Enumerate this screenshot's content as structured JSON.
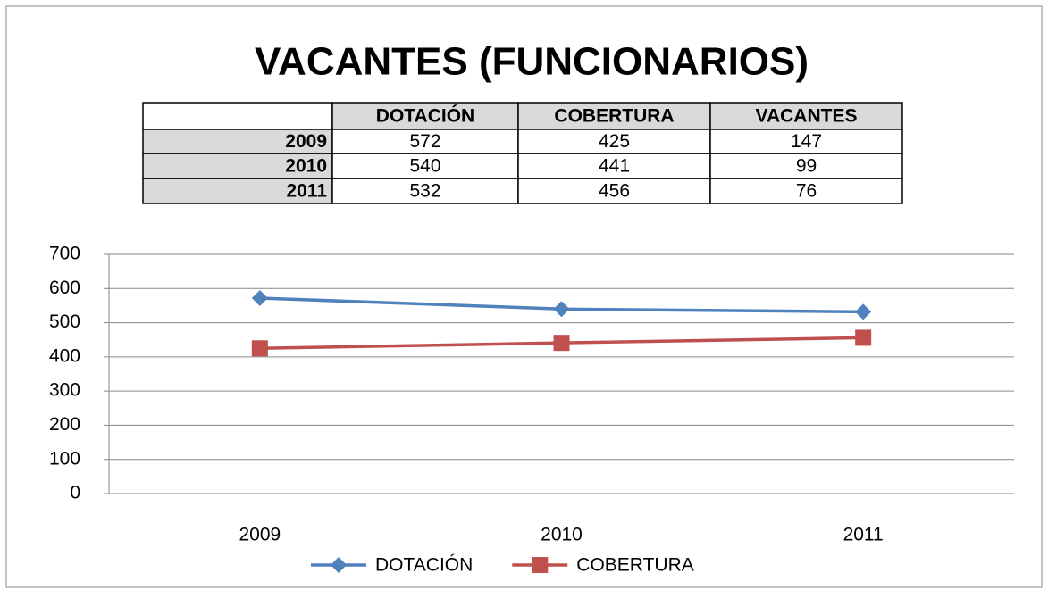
{
  "chart_data": {
    "type": "line",
    "title": "VACANTES (FUNCIONARIOS)",
    "table": {
      "columns": [
        "DOTACIÓN",
        "COBERTURA",
        "VACANTES"
      ],
      "rows": [
        [
          "2009",
          572,
          425,
          147
        ],
        [
          "2010",
          540,
          441,
          99
        ],
        [
          "2011",
          532,
          456,
          76
        ]
      ]
    },
    "categories": [
      "2009",
      "2010",
      "2011"
    ],
    "series": [
      {
        "name": "DOTACIÓN",
        "color": "#4f81bd",
        "marker": "diamond",
        "values": [
          572,
          540,
          532
        ]
      },
      {
        "name": "COBERTURA",
        "color": "#c0504d",
        "marker": "square",
        "values": [
          425,
          441,
          456
        ]
      }
    ],
    "ylim": [
      0,
      700
    ],
    "yticks": [
      0,
      100,
      200,
      300,
      400,
      500,
      600,
      700
    ],
    "grid": true,
    "legend": "bottom"
  }
}
